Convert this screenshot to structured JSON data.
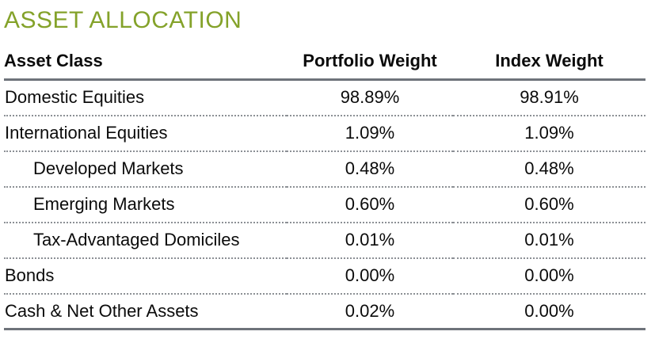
{
  "page": {
    "title": "ASSET ALLOCATION"
  },
  "colors": {
    "title_green": "#84a22a",
    "rule_gray": "#6e737a",
    "dotted_separator_gray": "#8c9095",
    "text": "#0b0b0b",
    "background": "#ffffff"
  },
  "table": {
    "columns": [
      "Asset Class",
      "Portfolio Weight",
      "Index Weight"
    ],
    "rows": [
      {
        "asset_class": "Domestic Equities",
        "portfolio_weight": "98.89%",
        "index_weight": "98.91%",
        "indent": false
      },
      {
        "asset_class": "International Equities",
        "portfolio_weight": "1.09%",
        "index_weight": "1.09%",
        "indent": false
      },
      {
        "asset_class": "Developed Markets",
        "portfolio_weight": "0.48%",
        "index_weight": "0.48%",
        "indent": true
      },
      {
        "asset_class": "Emerging Markets",
        "portfolio_weight": "0.60%",
        "index_weight": "0.60%",
        "indent": true
      },
      {
        "asset_class": "Tax-Advantaged Domiciles",
        "portfolio_weight": "0.01%",
        "index_weight": "0.01%",
        "indent": true
      },
      {
        "asset_class": "Bonds",
        "portfolio_weight": "0.00%",
        "index_weight": "0.00%",
        "indent": false
      },
      {
        "asset_class": "Cash & Net Other Assets",
        "portfolio_weight": "0.02%",
        "index_weight": "0.00%",
        "indent": false
      }
    ]
  }
}
